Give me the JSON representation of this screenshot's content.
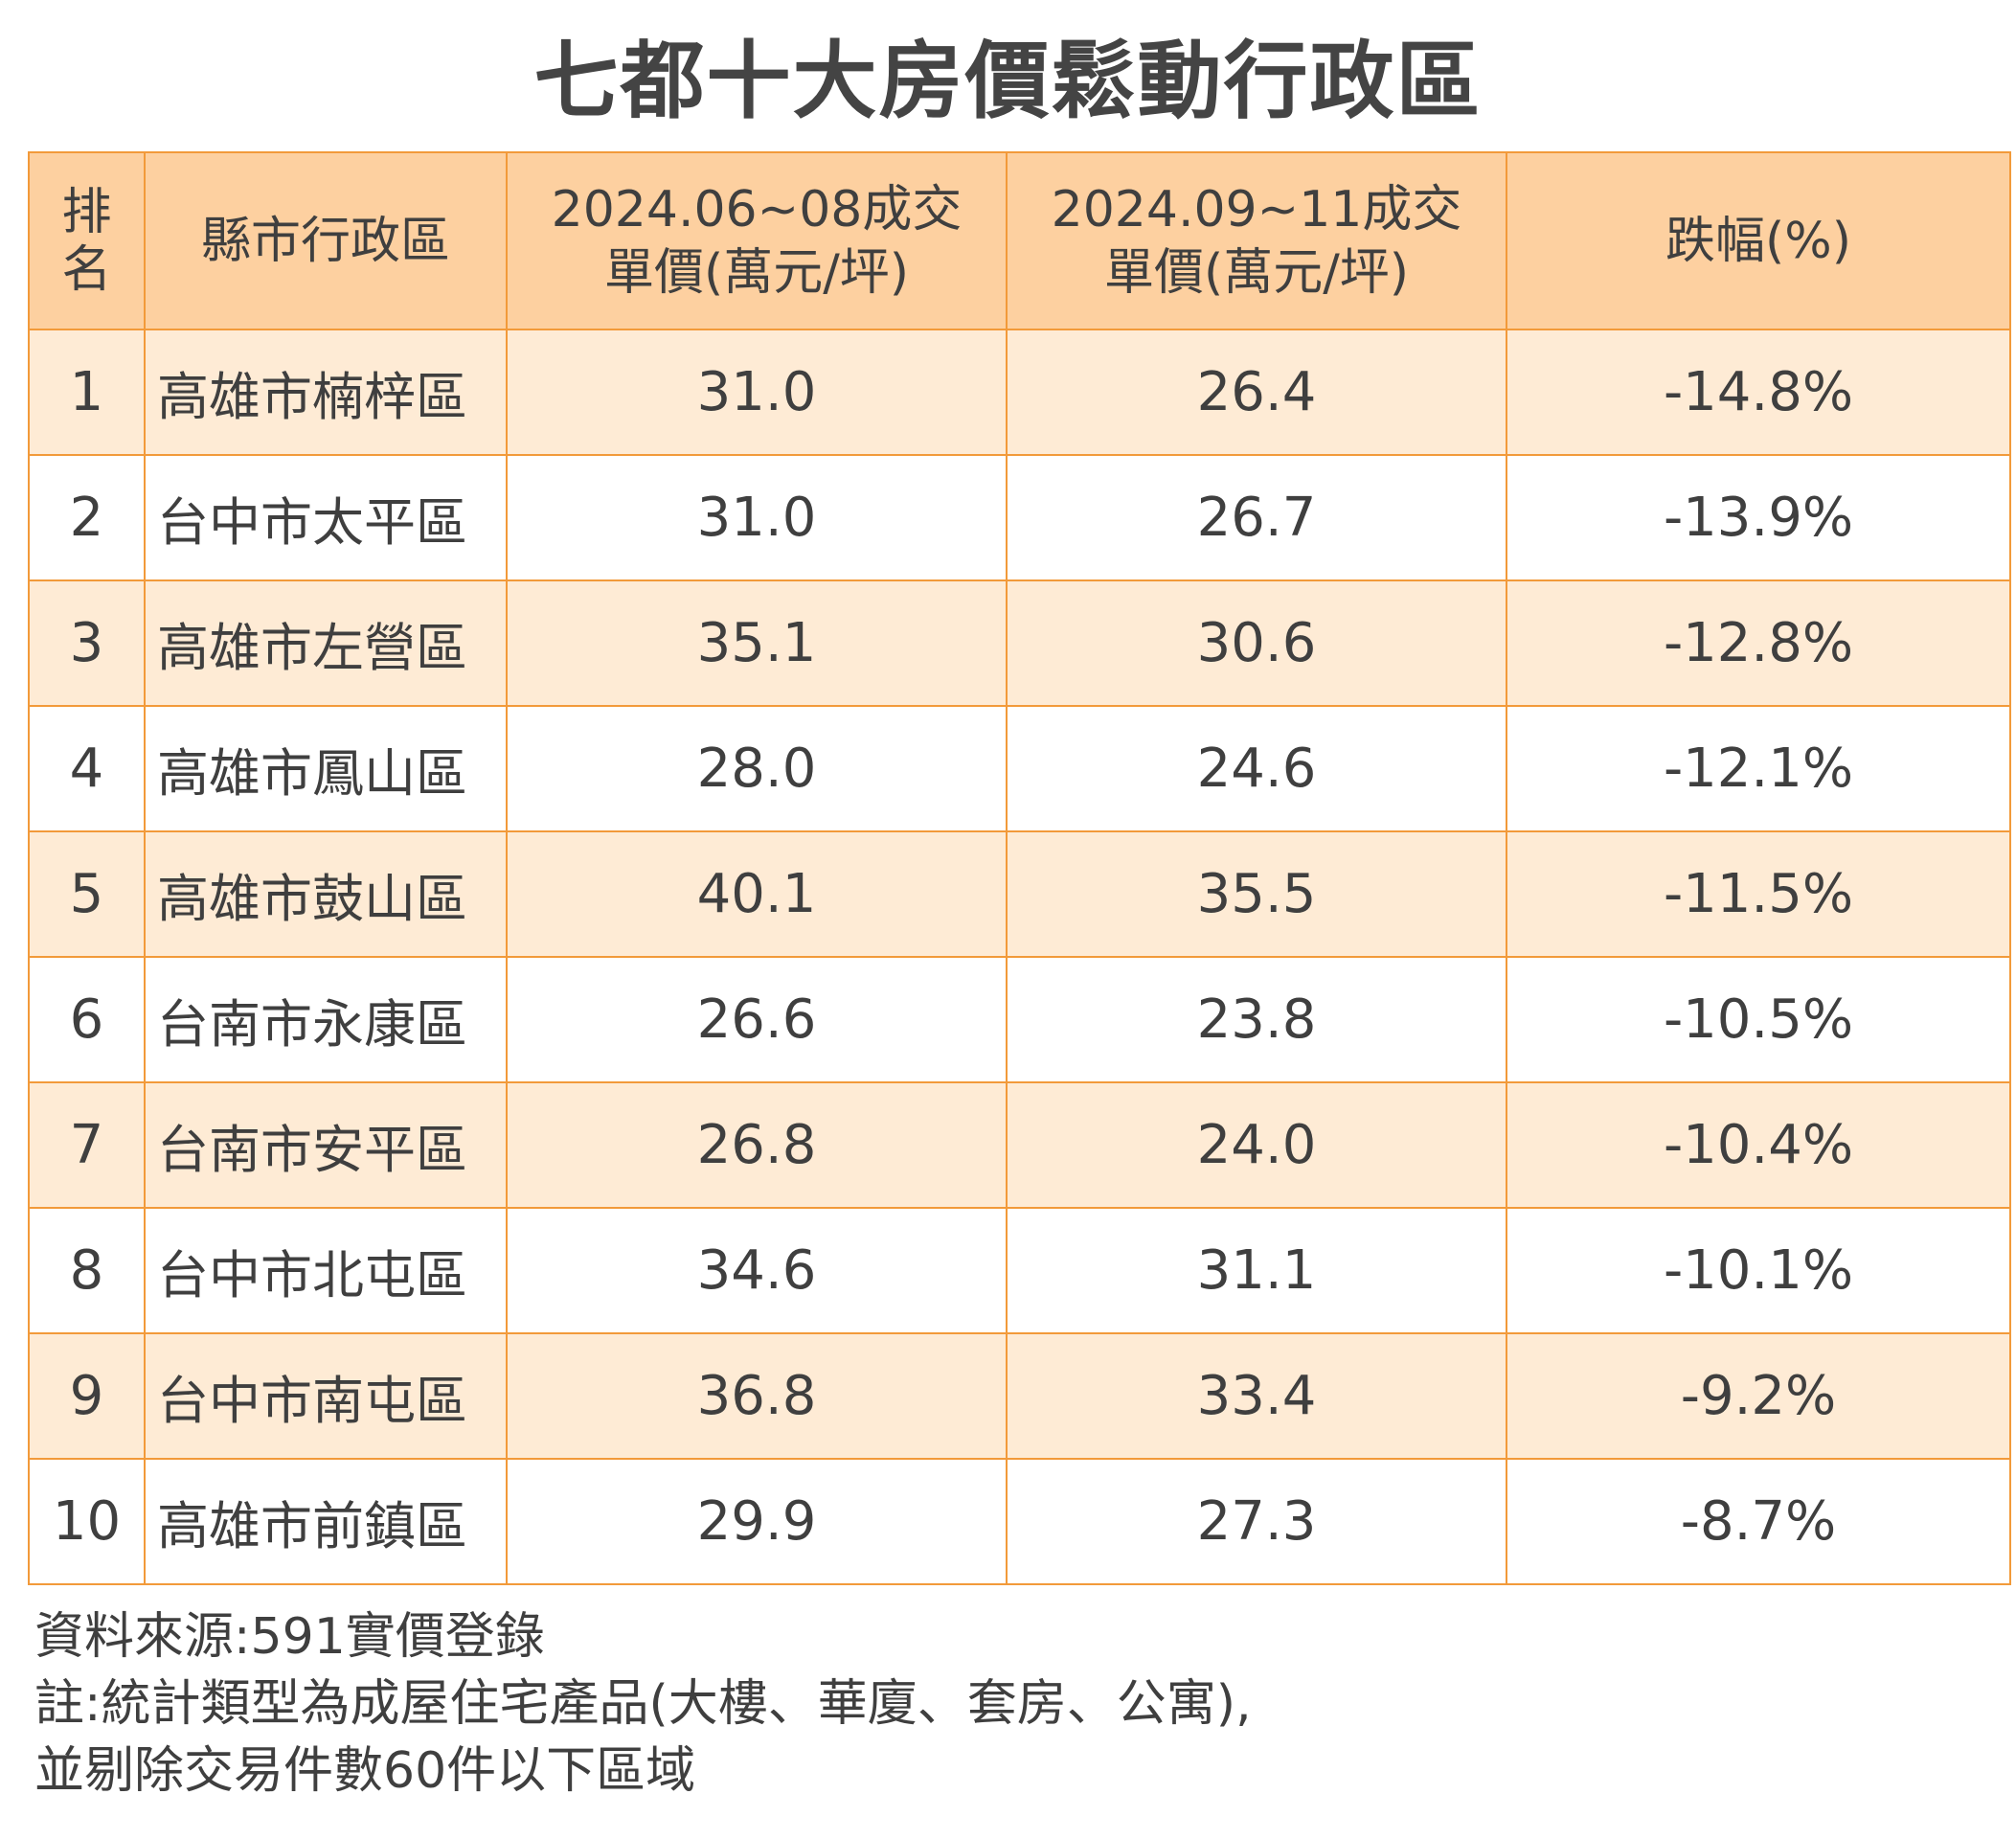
{
  "chart_data": {
    "type": "table",
    "title": "七都十大房價鬆動行政區",
    "columns": [
      "排名",
      "縣市行政區",
      "2024.06~08成交單價(萬元/坪)",
      "2024.09~11成交單價(萬元/坪)",
      "跌幅(%)"
    ],
    "header": {
      "rank": "排名",
      "district": "縣市行政區",
      "period1": "2024.06~08成交單價(萬元/坪)",
      "period2": "2024.09~11成交單價(萬元/坪)",
      "change": "跌幅(%)"
    },
    "rows": [
      {
        "rank": "1",
        "district": "高雄市楠梓區",
        "period1": "31.0",
        "period2": "26.4",
        "change": "-14.8%"
      },
      {
        "rank": "2",
        "district": "台中市太平區",
        "period1": "31.0",
        "period2": "26.7",
        "change": "-13.9%"
      },
      {
        "rank": "3",
        "district": "高雄市左營區",
        "period1": "35.1",
        "period2": "30.6",
        "change": "-12.8%"
      },
      {
        "rank": "4",
        "district": "高雄市鳳山區",
        "period1": "28.0",
        "period2": "24.6",
        "change": "-12.1%"
      },
      {
        "rank": "5",
        "district": "高雄市鼓山區",
        "period1": "40.1",
        "period2": "35.5",
        "change": "-11.5%"
      },
      {
        "rank": "6",
        "district": "台南市永康區",
        "period1": "26.6",
        "period2": "23.8",
        "change": "-10.5%"
      },
      {
        "rank": "7",
        "district": "台南市安平區",
        "period1": "26.8",
        "period2": "24.0",
        "change": "-10.4%"
      },
      {
        "rank": "8",
        "district": "台中市北屯區",
        "period1": "34.6",
        "period2": "31.1",
        "change": "-10.1%"
      },
      {
        "rank": "9",
        "district": "台中市南屯區",
        "period1": "36.8",
        "period2": "33.4",
        "change": "-9.2%"
      },
      {
        "rank": "10",
        "district": "高雄市前鎮區",
        "period1": "29.9",
        "period2": "27.3",
        "change": "-8.7%"
      }
    ],
    "notes": [
      "資料來源:591實價登錄",
      "註:統計類型為成屋住宅產品(大樓、華廈、套房、公寓),",
      "並剔除交易件數60件以下區域"
    ]
  },
  "colors": {
    "header_bg": "#fdd0a0",
    "odd_row_bg": "#feebd5",
    "even_row_bg": "#ffffff",
    "border": "#f29a3a",
    "text": "#3f3f3f"
  }
}
